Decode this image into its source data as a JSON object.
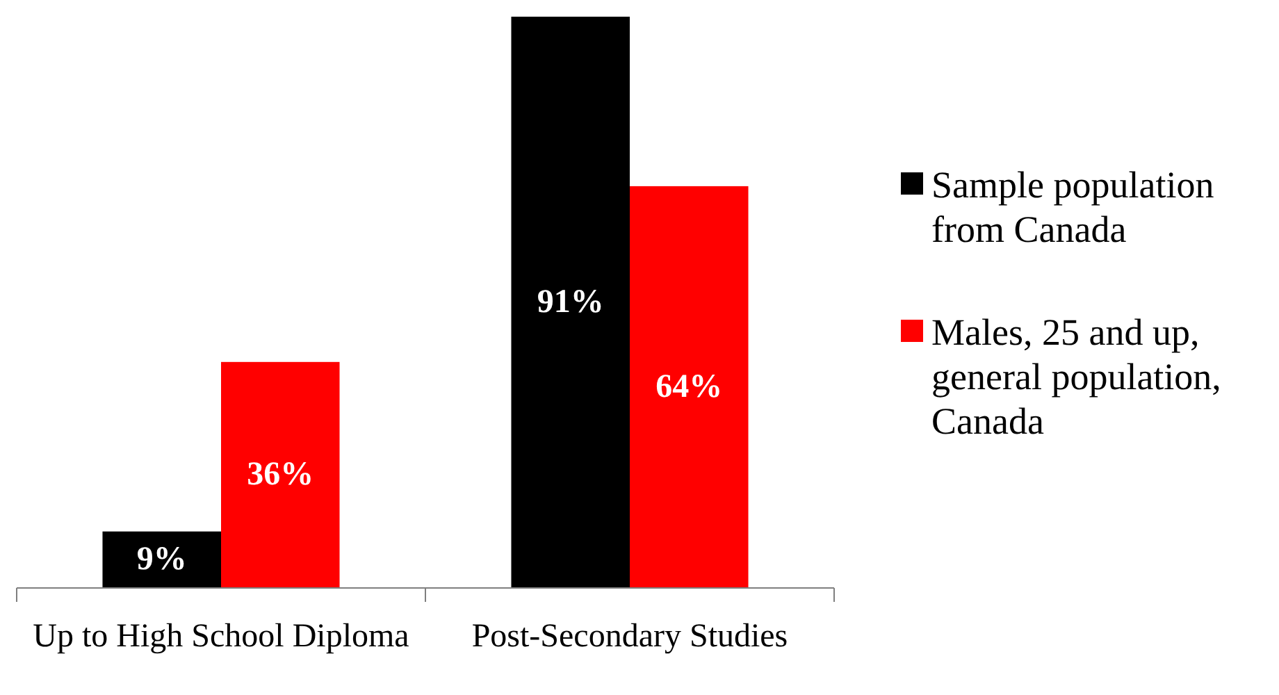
{
  "chart_data": {
    "type": "bar",
    "categories": [
      "Up to High School Diploma",
      "Post-Secondary Studies"
    ],
    "series": [
      {
        "name": "Sample population from Canada",
        "color": "#000000",
        "values": [
          9,
          91
        ],
        "value_labels": [
          "9%",
          "91%"
        ]
      },
      {
        "name": "Males, 25 and up, general population, Canada",
        "color": "#ff0000",
        "values": [
          36,
          64
        ],
        "value_labels": [
          "36%",
          "64%"
        ]
      }
    ],
    "legend": "right"
  }
}
